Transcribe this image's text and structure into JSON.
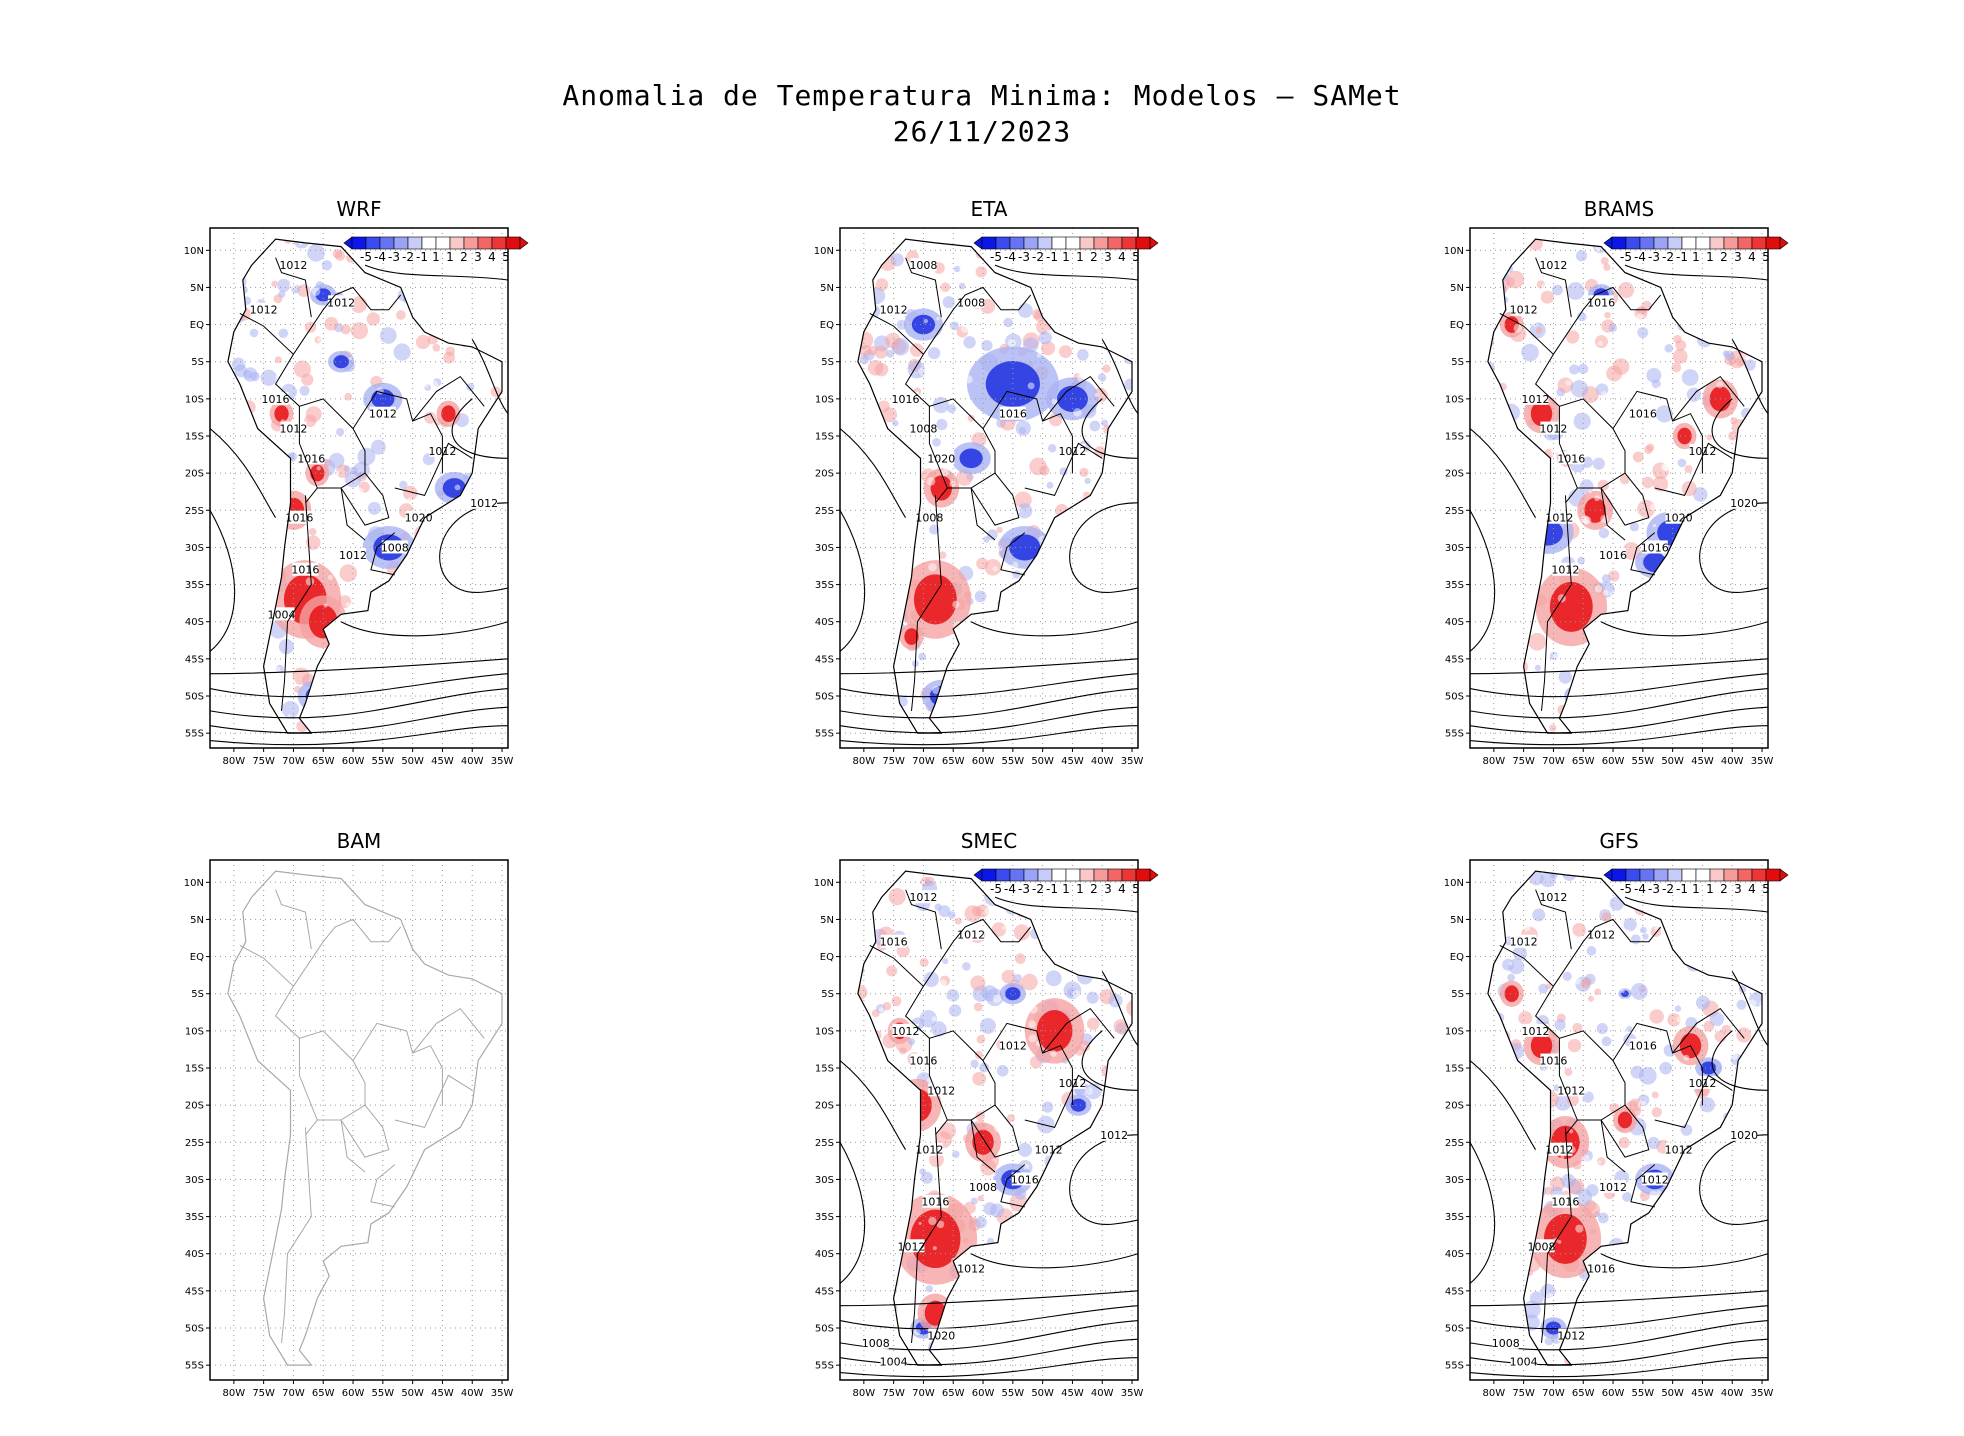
{
  "title": {
    "line1": "Anomalia de Temperatura Minima: Modelos — SAMet",
    "line2": "26/11/2023"
  },
  "axes": {
    "lat_labels": [
      "10N",
      "5N",
      "EQ",
      "5S",
      "10S",
      "15S",
      "20S",
      "25S",
      "30S",
      "35S",
      "40S",
      "45S",
      "50S",
      "55S"
    ],
    "lon_labels": [
      "80W",
      "75W",
      "70W",
      "65W",
      "60W",
      "55W",
      "50W",
      "45W",
      "40W",
      "35W"
    ]
  },
  "colorbar": {
    "labels": [
      "-5",
      "-4",
      "-3",
      "-2",
      "-1",
      "1",
      "1",
      "2",
      "3",
      "4",
      "5"
    ],
    "colors": [
      "#0a17e8",
      "#3a4bf0",
      "#6674f4",
      "#9aa3f6",
      "#c8ccf9",
      "#ffffff",
      "#ffffff",
      "#f9c8c8",
      "#f69a9a",
      "#f26666",
      "#ee3636",
      "#e10c0c"
    ]
  },
  "colors": {
    "warm": "#e8181c",
    "warm_light": "#f5a3a3",
    "cool": "#1c2fe0",
    "cool_light": "#aab3f2",
    "grey_coast": "#a8a8a8"
  },
  "panels": [
    {
      "name": "WRF",
      "has_data": true,
      "warm": [
        [
          -68,
          -37,
          6
        ],
        [
          -65,
          -40,
          4
        ],
        [
          -70,
          -25,
          3
        ],
        [
          -72,
          -12,
          2
        ],
        [
          -66,
          -20,
          2
        ],
        [
          -44,
          -12,
          2
        ]
      ],
      "cool": [
        [
          -54,
          -30,
          4
        ],
        [
          -43,
          -22,
          3
        ],
        [
          -66,
          -50,
          3
        ],
        [
          -55,
          -10,
          3
        ],
        [
          -65,
          4,
          2
        ],
        [
          -62,
          -5,
          2
        ]
      ],
      "isobars": [
        "1012",
        "1012",
        "1012",
        "1016",
        "1012",
        "1016",
        "1012",
        "1012",
        "1016",
        "1020",
        "1016",
        "1012",
        "1012",
        "1008",
        "1004"
      ]
    },
    {
      "name": "ETA",
      "has_data": true,
      "warm": [
        [
          -68,
          -37,
          6
        ],
        [
          -67,
          -22,
          3
        ],
        [
          -72,
          -42,
          2
        ]
      ],
      "cool": [
        [
          -55,
          -8,
          7
        ],
        [
          -45,
          -10,
          4
        ],
        [
          -53,
          -30,
          4
        ],
        [
          -62,
          -18,
          3
        ],
        [
          -67,
          -50,
          3
        ],
        [
          -70,
          0,
          3
        ]
      ],
      "isobars": [
        "1008",
        "1008",
        "1012",
        "1016",
        "1008",
        "1020",
        "1016",
        "1012",
        "1008"
      ]
    },
    {
      "name": "BRAMS",
      "has_data": true,
      "warm": [
        [
          -67,
          -38,
          6
        ],
        [
          -42,
          -10,
          3
        ],
        [
          -63,
          -25,
          3
        ],
        [
          -72,
          -12,
          3
        ],
        [
          -48,
          -15,
          2
        ],
        [
          -77,
          0,
          2
        ]
      ],
      "cool": [
        [
          -71,
          -28,
          4
        ],
        [
          -50,
          -28,
          4
        ],
        [
          -53,
          -32,
          3
        ],
        [
          -66,
          -50,
          2
        ],
        [
          -62,
          4,
          2
        ]
      ],
      "isobars": [
        "1012",
        "1016",
        "1012",
        "1012",
        "1012",
        "1016",
        "1016",
        "1012",
        "1012",
        "1020",
        "1012",
        "1016",
        "1020",
        "1016"
      ]
    },
    {
      "name": "BAM",
      "has_data": false,
      "warm": [],
      "cool": [],
      "isobars": []
    },
    {
      "name": "SMEC",
      "has_data": true,
      "warm": [
        [
          -68,
          -38,
          7
        ],
        [
          -71,
          -20,
          4
        ],
        [
          -48,
          -10,
          5
        ],
        [
          -60,
          -25,
          3
        ],
        [
          -74,
          -10,
          2
        ],
        [
          -68,
          -48,
          3
        ]
      ],
      "cool": [
        [
          -55,
          -30,
          3
        ],
        [
          -44,
          -20,
          2
        ],
        [
          -70,
          -50,
          2
        ],
        [
          -55,
          -5,
          2
        ]
      ],
      "isobars": [
        "1012",
        "1012",
        "1016",
        "1012",
        "1016",
        "1012",
        "1012",
        "1012",
        "1012",
        "1012",
        "1016",
        "1008",
        "1012",
        "1016",
        "1012",
        "1012",
        "1020",
        "1008",
        "1004"
      ]
    },
    {
      "name": "GFS",
      "has_data": true,
      "warm": [
        [
          -68,
          -38,
          6
        ],
        [
          -68,
          -25,
          4
        ],
        [
          -47,
          -12,
          3
        ],
        [
          -72,
          -12,
          3
        ],
        [
          -77,
          -5,
          2
        ],
        [
          -58,
          -22,
          2
        ]
      ],
      "cool": [
        [
          -53,
          -30,
          3
        ],
        [
          -44,
          -15,
          2
        ],
        [
          -70,
          -50,
          2
        ],
        [
          -58,
          -5,
          1
        ]
      ],
      "isobars": [
        "1012",
        "1012",
        "1012",
        "1012",
        "1016",
        "1012",
        "1016",
        "1012",
        "1012",
        "1012",
        "1016",
        "1012",
        "1020",
        "1012",
        "1008",
        "1016",
        "1012",
        "1008",
        "1004"
      ]
    }
  ]
}
